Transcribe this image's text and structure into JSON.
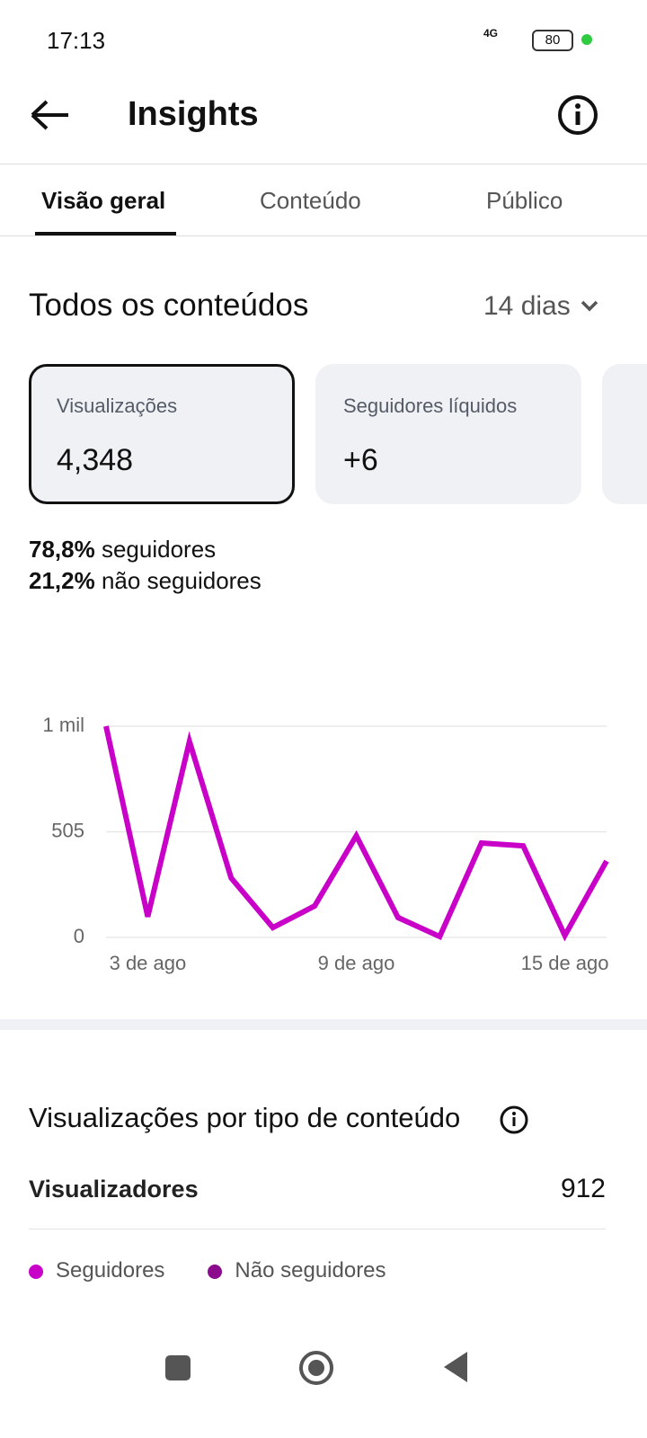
{
  "status_bar": {
    "time": "17:13",
    "network": "4G",
    "battery": "80"
  },
  "header": {
    "title": "Insights"
  },
  "tabs": [
    "Visão geral",
    "Conteúdo",
    "Público"
  ],
  "summary": {
    "title": "Todos os conteúdos",
    "period": "14 dias"
  },
  "cards": [
    {
      "label": "Visualizações",
      "value": "4,348"
    },
    {
      "label": "Seguidores líquidos",
      "value": "+6"
    }
  ],
  "breakdown": [
    {
      "percent": "78,8%",
      "label": "seguidores"
    },
    {
      "percent": "21,2%",
      "label": "não seguidores"
    }
  ],
  "chart_data": {
    "type": "line",
    "categories": [
      null,
      "3 de ago",
      null,
      null,
      null,
      null,
      "9 de ago",
      null,
      null,
      null,
      null,
      "15 de ago",
      null
    ],
    "values": [
      1010,
      99,
      937,
      284,
      47,
      150,
      486,
      95,
      4,
      451,
      438,
      9,
      365
    ],
    "color": "#c800c8",
    "ylim": [
      0,
      1010
    ],
    "yticks": [
      0,
      505,
      {
        "value": 1010,
        "label": "1 mil"
      }
    ],
    "grid": true
  },
  "content_type": {
    "title": "Visualizações por tipo de conteúdo",
    "row": {
      "label": "Visualizadores",
      "value": "912"
    },
    "legend": [
      {
        "name": "Seguidores",
        "color": "#c800c8"
      },
      {
        "name": "Não seguidores",
        "color": "#8c0a8c"
      }
    ]
  }
}
